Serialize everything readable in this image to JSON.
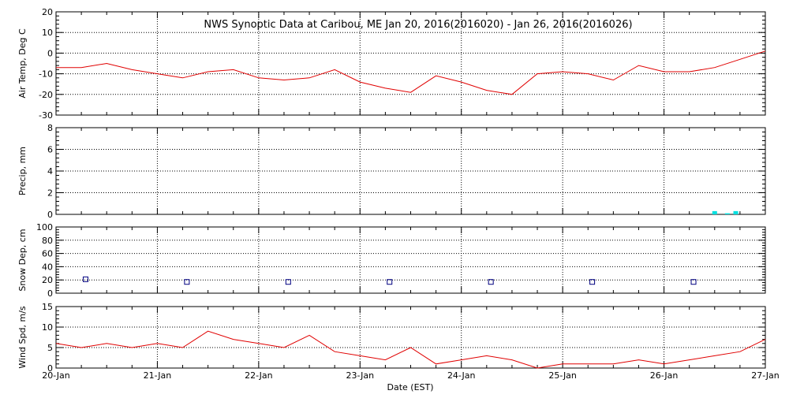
{
  "chart_data": {
    "title": "NWS Synoptic Data at Caribou, ME   Jan 20, 2016(2016020) - Jan 26, 2016(2016026)",
    "xlabel": "Date (EST)",
    "x_ticks": [
      "20-Jan",
      "21-Jan",
      "22-Jan",
      "23-Jan",
      "24-Jan",
      "25-Jan",
      "26-Jan",
      "27-Jan"
    ],
    "x_range_days": [
      0,
      7
    ],
    "grid": true,
    "panels": [
      {
        "id": "air-temp",
        "type": "line",
        "ylabel": "Air Temp, Deg C",
        "ylim": [
          -30,
          20
        ],
        "yticks": [
          -30,
          -20,
          -10,
          0,
          10,
          20
        ],
        "color": "#e00000",
        "series": [
          {
            "x": [
              "20-Jan 00:00",
              "20-Jan 06:00",
              "20-Jan 12:00",
              "20-Jan 18:00",
              "21-Jan 00:00",
              "21-Jan 06:00",
              "21-Jan 12:00",
              "21-Jan 18:00",
              "22-Jan 00:00",
              "22-Jan 06:00",
              "22-Jan 12:00",
              "22-Jan 18:00",
              "23-Jan 00:00",
              "23-Jan 06:00",
              "23-Jan 12:00",
              "23-Jan 18:00",
              "24-Jan 00:00",
              "24-Jan 06:00",
              "24-Jan 12:00",
              "24-Jan 18:00",
              "25-Jan 00:00",
              "25-Jan 06:00",
              "25-Jan 12:00",
              "25-Jan 18:00",
              "26-Jan 00:00",
              "26-Jan 06:00",
              "26-Jan 12:00",
              "26-Jan 18:00",
              "27-Jan 00:00"
            ],
            "y": [
              -7,
              -7,
              -5,
              -8,
              -10,
              -12,
              -9,
              -8,
              -12,
              -13,
              -12,
              -8,
              -14,
              -17,
              -19,
              -11,
              -14,
              -18,
              -20,
              -10,
              -9,
              -10,
              -13,
              -6,
              -9,
              -9,
              -7,
              -3,
              1
            ]
          }
        ]
      },
      {
        "id": "precip",
        "type": "bar",
        "ylabel": "Precip, mm",
        "ylim": [
          0,
          8
        ],
        "yticks": [
          0,
          2,
          4,
          6,
          8
        ],
        "color": "#00e0e0",
        "series": [
          {
            "x": [
              "26-Jan 12:00",
              "26-Jan 15:00",
              "26-Jan 17:00"
            ],
            "y": [
              0.3,
              0.1,
              0.3
            ]
          }
        ]
      },
      {
        "id": "snow-depth",
        "type": "scatter",
        "ylabel": "Snow Dep, cm",
        "ylim": [
          0,
          100
        ],
        "yticks": [
          0,
          20,
          40,
          60,
          80,
          100
        ],
        "color": "#000080",
        "series": [
          {
            "x": [
              "20-Jan 07:00",
              "21-Jan 07:00",
              "22-Jan 07:00",
              "23-Jan 07:00",
              "24-Jan 07:00",
              "25-Jan 07:00",
              "26-Jan 07:00"
            ],
            "y": [
              21,
              17,
              17,
              17,
              17,
              17,
              17
            ]
          }
        ]
      },
      {
        "id": "wind-speed",
        "type": "line",
        "ylabel": "Wind Spd, m/s",
        "ylim": [
          0,
          15
        ],
        "yticks": [
          0,
          5,
          10,
          15
        ],
        "color": "#e00000",
        "series": [
          {
            "x": [
              "20-Jan 00:00",
              "20-Jan 06:00",
              "20-Jan 12:00",
              "20-Jan 18:00",
              "21-Jan 00:00",
              "21-Jan 06:00",
              "21-Jan 12:00",
              "21-Jan 18:00",
              "22-Jan 00:00",
              "22-Jan 06:00",
              "22-Jan 12:00",
              "22-Jan 18:00",
              "23-Jan 00:00",
              "23-Jan 06:00",
              "23-Jan 12:00",
              "23-Jan 18:00",
              "24-Jan 00:00",
              "24-Jan 06:00",
              "24-Jan 12:00",
              "24-Jan 18:00",
              "25-Jan 00:00",
              "25-Jan 06:00",
              "25-Jan 12:00",
              "25-Jan 18:00",
              "26-Jan 00:00",
              "26-Jan 06:00",
              "26-Jan 12:00",
              "26-Jan 18:00",
              "27-Jan 00:00"
            ],
            "y": [
              6,
              5,
              6,
              5,
              6,
              5,
              9,
              7,
              6,
              5,
              8,
              4,
              3,
              2,
              5,
              1,
              2,
              3,
              2,
              0,
              1,
              1,
              1,
              2,
              1,
              2,
              3,
              4,
              7
            ]
          }
        ]
      }
    ]
  }
}
